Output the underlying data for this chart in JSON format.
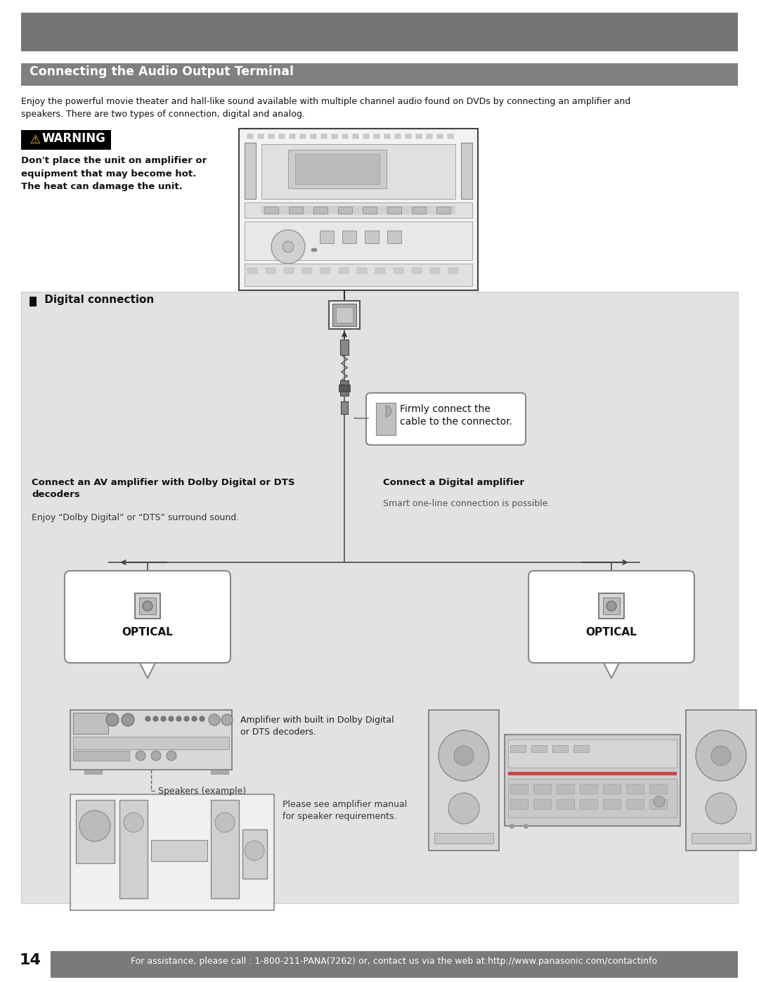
{
  "page_bg": "#ffffff",
  "header_bg": "#757575",
  "section_title_bg": "#808080",
  "section_title_text": "Connecting the Audio Output Terminal",
  "body_text_1": "Enjoy the powerful movie theater and hall-like sound available with multiple channel audio found on DVDs by connecting an amplifier and\nspeakers. There are two types of connection, digital and analog.",
  "warning_body": "Don't place the unit on amplifier or\nequipment that may become hot.\nThe heat can damage the unit.",
  "digital_section_bg": "#e2e2e2",
  "digital_section_title": " Digital connection",
  "callout_text": "Firmly connect the\ncable to the connector.",
  "left_col_title": "Connect an AV amplifier with Dolby Digital or DTS\ndecoders",
  "left_col_body": "Enjoy “Dolby Digital” or “DTS” surround sound.",
  "left_optical_label": "OPTICAL",
  "right_col_title": "Connect a Digital amplifier",
  "right_col_body": "Smart one-line connection is possible.",
  "right_optical_label": "OPTICAL",
  "amp_caption": "Amplifier with built in Dolby Digital\nor DTS decoders.",
  "speaker_caption": "Speakers (example)",
  "speaker_note": "Please see amplifier manual\nfor speaker requirements.",
  "footer_bg": "#7a7a7a",
  "footer_text": "For assistance, please call : 1-800-211-PANA(7262) or, contact us via the web at:http://www.panasonic.com/contactinfo",
  "footer_page": "14",
  "footer_text_color": "#ffffff"
}
